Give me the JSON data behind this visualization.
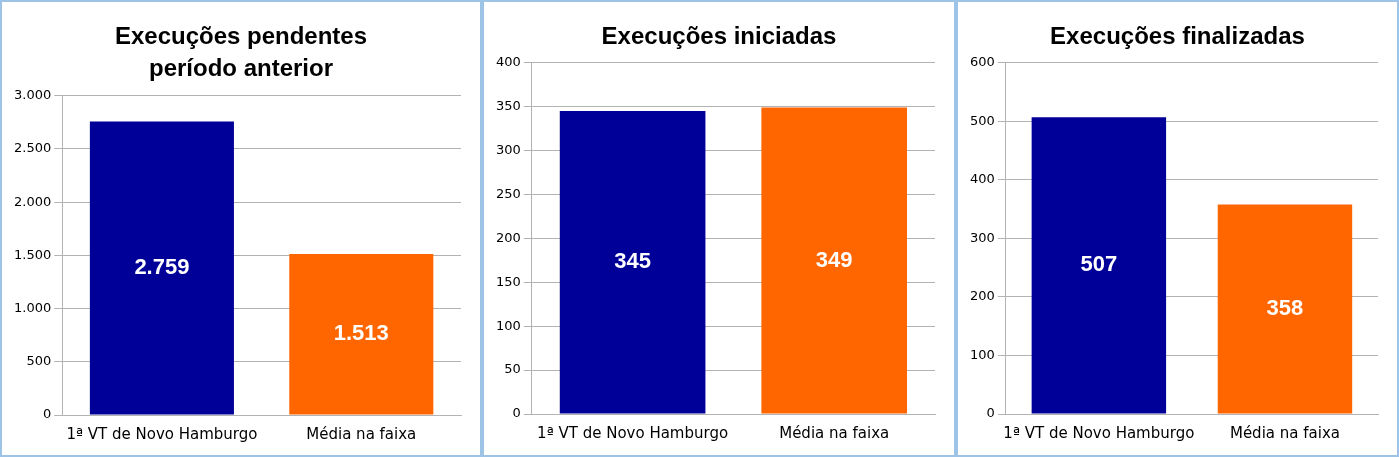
{
  "chart_data": [
    {
      "type": "bar",
      "title": "Execuções pendentes período anterior",
      "categories": [
        "1ª VT de Novo Hamburgo",
        "Média na faixa"
      ],
      "values": [
        2759,
        1513
      ],
      "colors": [
        "#000099",
        "#ff6600"
      ],
      "value_labels": [
        "2.759",
        "1.513"
      ],
      "ylim": [
        0,
        3000
      ],
      "yticks": [
        0,
        {
          "value": 500,
          "label": "500"
        },
        {
          "value": 1000,
          "label": "1.000"
        },
        {
          "value": 1500,
          "label": "1.500"
        },
        {
          "value": 2000,
          "label": "2.000"
        },
        {
          "value": 2500,
          "label": "2.500"
        },
        {
          "value": 3000,
          "label": "3.000"
        }
      ],
      "grid": "y",
      "legend": false
    },
    {
      "type": "bar",
      "title": "Execuções iniciadas",
      "categories": [
        "1ª VT de Novo Hamburgo",
        "Média na faixa"
      ],
      "values": [
        345,
        349
      ],
      "colors": [
        "#000099",
        "#ff6600"
      ],
      "data_labels": true,
      "ylim": [
        0,
        400
      ],
      "yticks": [
        0,
        50,
        100,
        150,
        200,
        250,
        300,
        350,
        400
      ],
      "grid": "y",
      "legend": false
    },
    {
      "type": "bar",
      "title": "Execuções finalizadas",
      "categories": [
        "1ª VT de Novo Hamburgo",
        "Média na faixa"
      ],
      "values": [
        507,
        358
      ],
      "colors": [
        "#000099",
        "#ff6600"
      ],
      "data_labels": true,
      "ylim": [
        0,
        600
      ],
      "yticks": [
        0,
        100,
        200,
        300,
        400,
        500,
        600
      ],
      "grid": "y",
      "legend": false
    }
  ]
}
